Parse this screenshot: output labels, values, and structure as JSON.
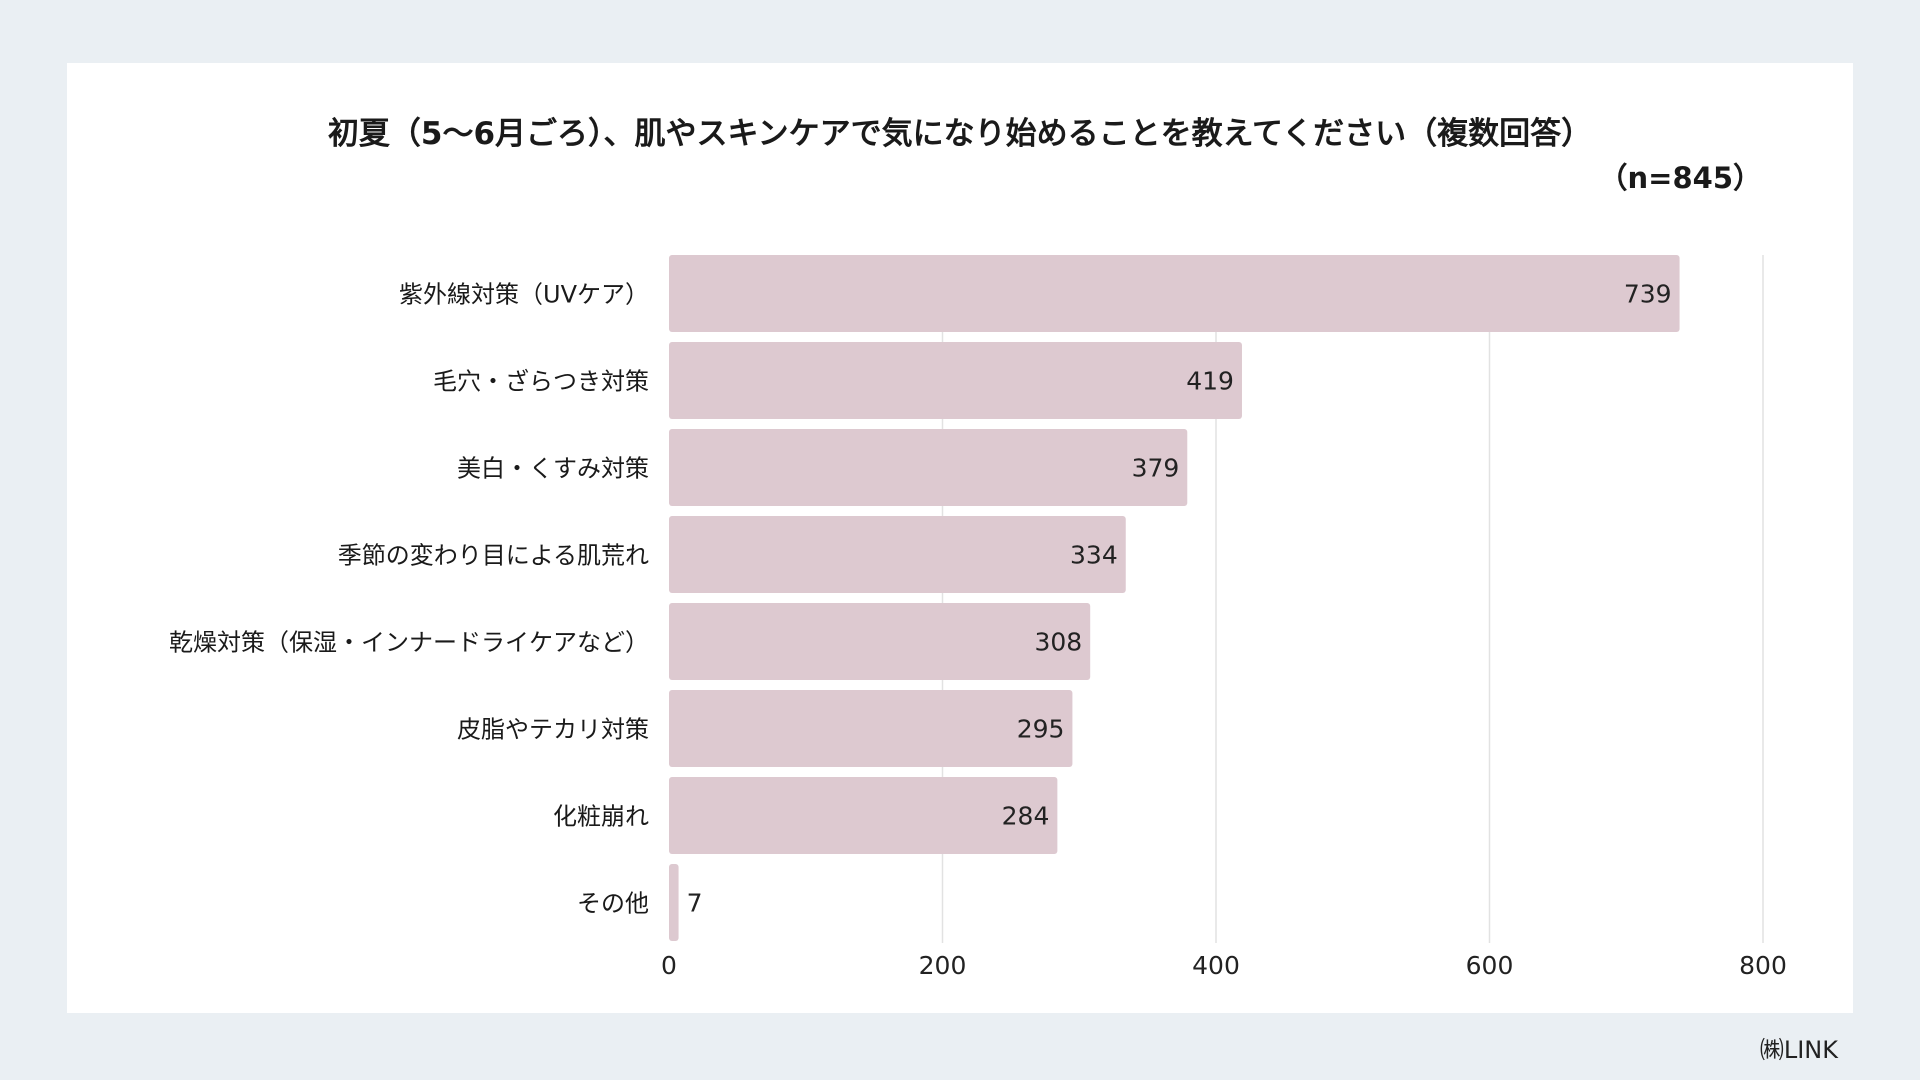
{
  "chart_data": {
    "type": "bar",
    "orientation": "horizontal",
    "title": "初夏（5〜6月ごろ）、肌やスキンケアで気になり始めることを教えてください（複数回答）",
    "subtitle": "（n=845）",
    "categories": [
      "紫外線対策（UVケア）",
      "毛穴・ざらつき対策",
      "美白・くすみ対策",
      "季節の変わり目による肌荒れ",
      "乾燥対策（保湿・インナードライケアなど）",
      "皮脂やテカリ対策",
      "化粧崩れ",
      "その他"
    ],
    "values": [
      739,
      419,
      379,
      334,
      308,
      295,
      284,
      7
    ],
    "xlim": [
      0,
      800
    ],
    "xticks": [
      0,
      200,
      400,
      600,
      800
    ],
    "grid": true,
    "bar_color": "#ddc9d0"
  },
  "footer": {
    "credit": "㈱LINK"
  }
}
